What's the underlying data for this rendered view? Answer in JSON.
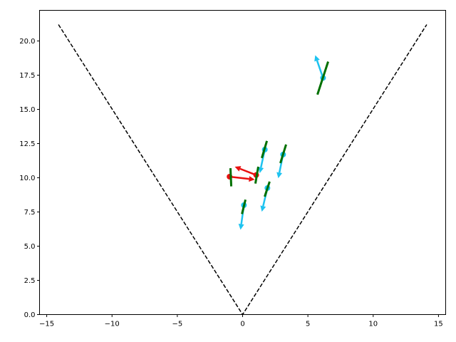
{
  "chart_data": {
    "type": "scatter",
    "xlim": [
      -15.55,
      15.55
    ],
    "ylim": [
      0,
      22.24
    ],
    "grid": false,
    "xticks": [
      "−15",
      "−10",
      "−5",
      "0",
      "5",
      "10",
      "15"
    ],
    "xtick_values": [
      -15,
      -10,
      -5,
      0,
      5,
      10,
      15
    ],
    "yticks": [
      "0.0",
      "2.5",
      "5.0",
      "7.5",
      "10.0",
      "12.5",
      "15.0",
      "17.5",
      "20.0"
    ],
    "ytick_values": [
      0,
      2.5,
      5,
      7.5,
      10,
      12.5,
      15,
      17.5,
      20
    ],
    "boundary_lines": {
      "color": "#000000",
      "style": "dashed",
      "points": [
        [
          -14.1,
          21.2
        ],
        [
          0,
          0
        ],
        [
          14.1,
          21.2
        ]
      ]
    },
    "colors": {
      "cyan": "#1ec3f0",
      "red": "#e81010",
      "heading": "#007000"
    },
    "agents": [
      {
        "color": "cyan",
        "pos": [
          0.1,
          8.0
        ],
        "arrow_to": [
          -0.16,
          6.2
        ],
        "heading": [
          [
            -0.05,
            7.35
          ],
          [
            0.22,
            8.4
          ]
        ]
      },
      {
        "color": "cyan",
        "pos": [
          1.9,
          9.25
        ],
        "arrow_to": [
          1.47,
          7.52
        ],
        "heading": [
          [
            1.69,
            8.62
          ],
          [
            2.07,
            9.72
          ]
        ]
      },
      {
        "color": "cyan",
        "pos": [
          1.7,
          12.06
        ],
        "arrow_to": [
          1.31,
          10.34
        ],
        "heading": [
          [
            1.47,
            11.44
          ],
          [
            1.86,
            12.69
          ]
        ]
      },
      {
        "color": "cyan",
        "pos": [
          3.1,
          11.7
        ],
        "arrow_to": [
          2.73,
          9.97
        ],
        "heading": [
          [
            2.89,
            11.07
          ],
          [
            3.33,
            12.43
          ]
        ]
      },
      {
        "color": "cyan",
        "pos": [
          6.16,
          17.3
        ],
        "arrow_to": [
          5.56,
          18.96
        ],
        "heading": [
          [
            5.73,
            16.08
          ],
          [
            6.55,
            18.49
          ]
        ]
      },
      {
        "color": "red",
        "pos": [
          -1.0,
          10.08
        ],
        "arrow_to": [
          0.93,
          9.87
        ],
        "heading": [
          [
            -0.93,
            10.7
          ],
          [
            -0.87,
            9.37
          ]
        ]
      },
      {
        "color": "red",
        "pos": [
          1.04,
          10.2
        ],
        "arrow_to": [
          -0.6,
          10.81
        ],
        "heading": [
          [
            0.98,
            9.58
          ],
          [
            1.2,
            10.81
          ]
        ]
      }
    ]
  }
}
